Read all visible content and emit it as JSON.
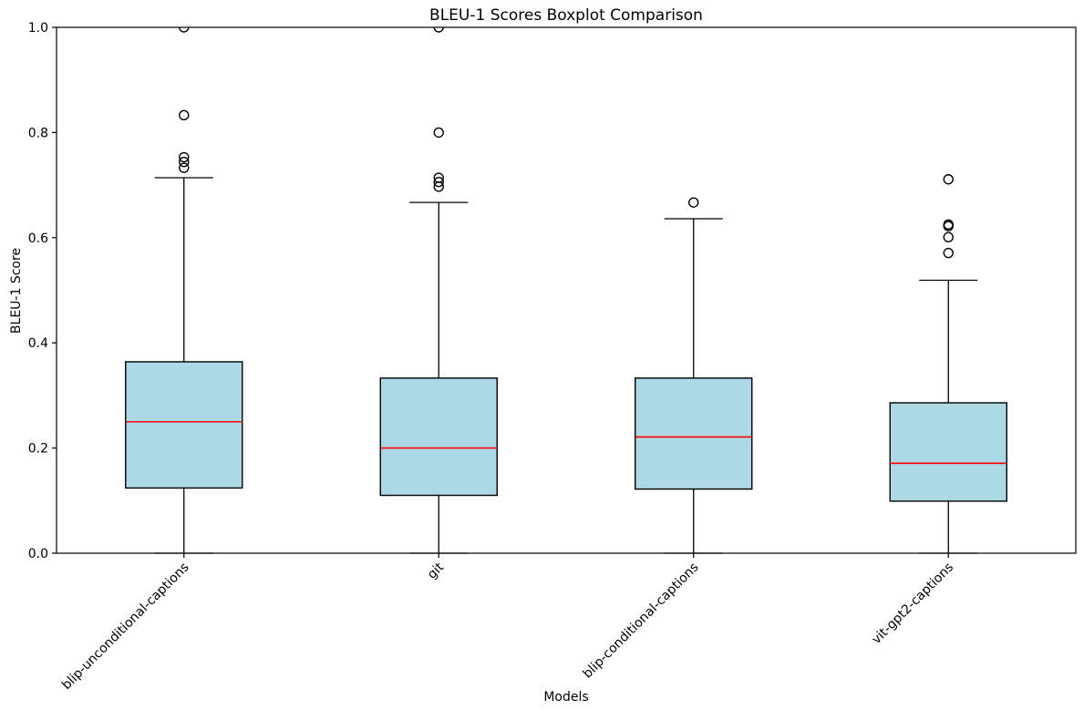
{
  "chart_data": {
    "type": "boxplot",
    "title": "BLEU-1 Scores Boxplot Comparison",
    "xlabel": "Models",
    "ylabel": "BLEU-1 Score",
    "ylim": [
      0.0,
      1.0
    ],
    "yticks": [
      0.0,
      0.2,
      0.4,
      0.6,
      0.8,
      1.0
    ],
    "ytick_labels": [
      "0.0",
      "0.2",
      "0.4",
      "0.6",
      "0.8",
      "1.0"
    ],
    "categories": [
      "blip-unconditional-captions",
      "git",
      "blip-conditional-captions",
      "vit-gpt2-captions"
    ],
    "grid": false,
    "legend": false,
    "boxes": [
      {
        "label": "blip-unconditional-captions",
        "whisker_low": 0.0,
        "q1": 0.124,
        "median": 0.25,
        "q3": 0.364,
        "whisker_high": 0.714,
        "outliers": [
          0.733,
          0.744,
          0.753,
          0.833,
          1.0
        ]
      },
      {
        "label": "git",
        "whisker_low": 0.0,
        "q1": 0.11,
        "median": 0.2,
        "q3": 0.333,
        "whisker_high": 0.667,
        "outliers": [
          0.697,
          0.706,
          0.714,
          0.8,
          1.0
        ]
      },
      {
        "label": "blip-conditional-captions",
        "whisker_low": 0.0,
        "q1": 0.122,
        "median": 0.221,
        "q3": 0.333,
        "whisker_high": 0.636,
        "outliers": [
          0.667
        ]
      },
      {
        "label": "vit-gpt2-captions",
        "whisker_low": 0.0,
        "q1": 0.099,
        "median": 0.171,
        "q3": 0.286,
        "whisker_high": 0.519,
        "outliers": [
          0.571,
          0.601,
          0.622,
          0.625,
          0.711
        ]
      }
    ],
    "colors": {
      "box_fill": "#ADD8E6",
      "box_edge": "#000000",
      "median": "#FF0000",
      "whisker": "#000000",
      "outlier_edge": "#000000",
      "background": "#FFFFFF"
    }
  }
}
